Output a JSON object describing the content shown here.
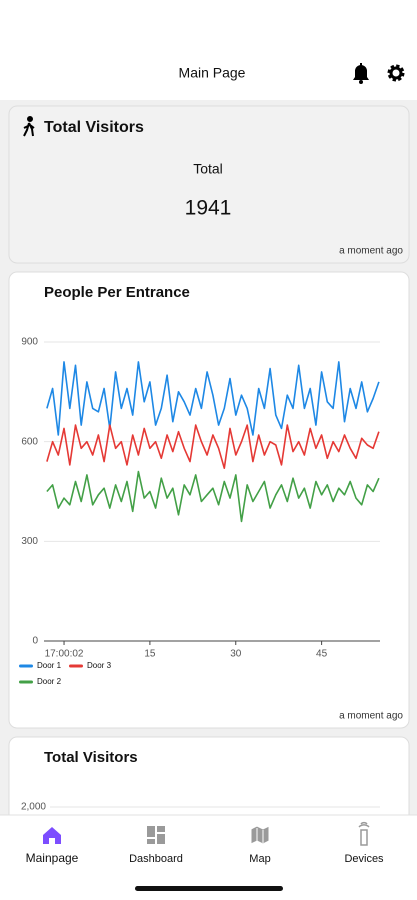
{
  "header": {
    "title": "Main Page"
  },
  "visitors_card": {
    "title": "Total Visitors",
    "label": "Total",
    "value": "1941",
    "updated": "a moment ago"
  },
  "chart_data": [
    {
      "type": "line",
      "title": "People Per Entrance",
      "updated": "a moment ago",
      "x": [
        -3,
        -2,
        -1,
        0,
        1,
        2,
        3,
        4,
        5,
        6,
        7,
        8,
        9,
        10,
        11,
        12,
        13,
        14,
        15,
        16,
        17,
        18,
        19,
        20,
        21,
        22,
        23,
        24,
        25,
        26,
        27,
        28,
        29,
        30,
        31,
        32,
        33,
        34,
        35,
        36,
        37,
        38,
        39,
        40,
        41,
        42,
        43,
        44,
        45,
        46,
        47,
        48,
        49,
        50,
        51,
        52,
        53,
        54,
        55
      ],
      "xlim": [
        -3.5,
        55.2
      ],
      "xticks": [
        {
          "value": 0,
          "label": "17:00:02"
        },
        15,
        30,
        45
      ],
      "ylim": [
        0,
        900
      ],
      "yticks": [
        0,
        300,
        600,
        900
      ],
      "grid": true,
      "series": [
        {
          "name": "Door 1",
          "color": "#1e88e5",
          "values": [
            700,
            760,
            620,
            840,
            700,
            830,
            650,
            780,
            700,
            690,
            760,
            640,
            810,
            700,
            760,
            680,
            840,
            720,
            780,
            650,
            700,
            800,
            660,
            750,
            720,
            680,
            760,
            700,
            810,
            740,
            650,
            700,
            790,
            680,
            740,
            700,
            620,
            760,
            700,
            820,
            680,
            640,
            740,
            700,
            830,
            700,
            760,
            650,
            810,
            720,
            700,
            840,
            660,
            760,
            700,
            780,
            690,
            730,
            780
          ]
        },
        {
          "name": "Door 3",
          "color": "#e53935",
          "values": [
            540,
            600,
            560,
            640,
            530,
            650,
            580,
            600,
            560,
            620,
            540,
            650,
            580,
            600,
            530,
            620,
            560,
            640,
            580,
            600,
            550,
            620,
            570,
            630,
            580,
            540,
            650,
            600,
            560,
            620,
            580,
            520,
            640,
            560,
            600,
            650,
            540,
            620,
            560,
            600,
            590,
            530,
            650,
            570,
            600,
            560,
            640,
            580,
            620,
            550,
            600,
            570,
            620,
            580,
            550,
            610,
            590,
            580,
            630
          ]
        },
        {
          "name": "Door 2",
          "color": "#43a047",
          "values": [
            450,
            470,
            400,
            430,
            410,
            480,
            420,
            500,
            410,
            440,
            460,
            400,
            470,
            420,
            480,
            390,
            510,
            430,
            450,
            400,
            490,
            430,
            460,
            380,
            470,
            440,
            500,
            420,
            440,
            460,
            410,
            480,
            430,
            500,
            360,
            470,
            420,
            450,
            480,
            400,
            440,
            470,
            420,
            490,
            430,
            460,
            400,
            480,
            440,
            470,
            420,
            460,
            440,
            480,
            430,
            410,
            470,
            450,
            490
          ]
        }
      ]
    },
    {
      "type": "bar",
      "title": "Total Visitors",
      "ylim": [
        0,
        2000
      ],
      "yticks": [
        {
          "value": 2000,
          "label": "2,000"
        }
      ],
      "grid": true
    }
  ],
  "nav": [
    {
      "label": "Mainpage",
      "active": true
    },
    {
      "label": "Dashboard",
      "active": false
    },
    {
      "label": "Map",
      "active": false
    },
    {
      "label": "Devices",
      "active": false
    }
  ]
}
